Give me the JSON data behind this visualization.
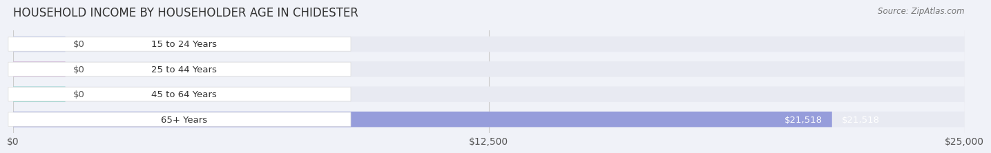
{
  "title": "HOUSEHOLD INCOME BY HOUSEHOLDER AGE IN CHIDESTER",
  "source": "Source: ZipAtlas.com",
  "categories": [
    "15 to 24 Years",
    "25 to 44 Years",
    "45 to 64 Years",
    "65+ Years"
  ],
  "values": [
    0,
    0,
    0,
    21518
  ],
  "bar_colors": [
    "#a8b8e8",
    "#c8a8d0",
    "#70c8c0",
    "#8890d8"
  ],
  "label_colors": [
    "#a8b8e8",
    "#c8a8d0",
    "#70c8c0",
    "#8890d8"
  ],
  "value_labels": [
    "$0",
    "$0",
    "$0",
    "$21,518"
  ],
  "xlim": [
    0,
    25000
  ],
  "xticks": [
    0,
    12500,
    25000
  ],
  "xtick_labels": [
    "$0",
    "$12,500",
    "$25,000"
  ],
  "bg_color": "#f0f2f8",
  "bar_bg_color": "#e8eaf2",
  "title_fontsize": 12,
  "tick_fontsize": 10
}
